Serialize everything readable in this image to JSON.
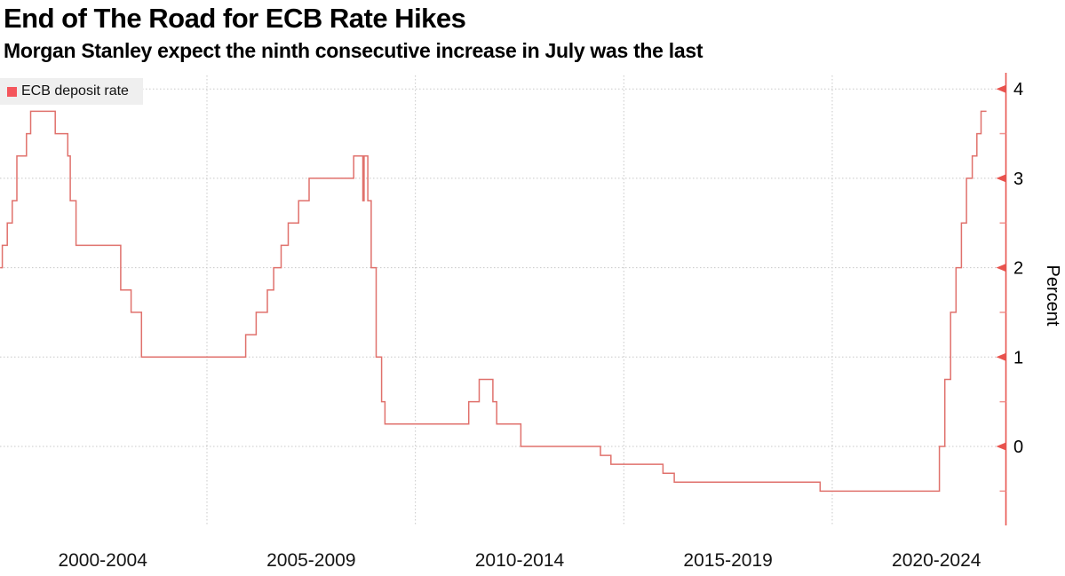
{
  "header": {
    "title": "End of The Road for ECB Rate Hikes",
    "subtitle": "Morgan Stanley expect the ninth consecutive increase in July was the last"
  },
  "legend": {
    "label": "ECB deposit rate"
  },
  "colors": {
    "line": "#e0716c",
    "axis": "#e8534e",
    "minor_tick": "#f0938f",
    "grid": "#c8c8c8",
    "legend_bg": "#efefef",
    "legend_swatch": "#f4565c",
    "tick_text": "#000000",
    "xlabel_text": "#141414"
  },
  "y_axis": {
    "title": "Percent",
    "major_ticks": [
      4,
      3,
      2,
      1,
      0
    ],
    "minor_ticks": [
      3.5,
      2.5,
      1.5,
      0.5,
      -0.5
    ]
  },
  "x_axis": {
    "labels": [
      "2000-2004",
      "2005-2009",
      "2010-2014",
      "2015-2019",
      "2020-2024"
    ],
    "gridline_years": [
      2005,
      2010,
      2015,
      2020
    ]
  },
  "chart_data": {
    "type": "line",
    "style": "step-after",
    "title": "End of The Road for ECB Rate Hikes",
    "subtitle": "Morgan Stanley expect the ninth consecutive increase in July was the last",
    "xlabel": "",
    "ylabel": "Percent",
    "xlim": [
      2000,
      2024.1
    ],
    "ylim": [
      -1,
      4.2
    ],
    "grid": "dotted",
    "legend_position": "top-left",
    "x_end": 2023.7,
    "series": [
      {
        "name": "ECB deposit rate",
        "unit": "percent",
        "points": [
          [
            2000.04,
            2.0
          ],
          [
            2000.09,
            2.25
          ],
          [
            2000.21,
            2.5
          ],
          [
            2000.33,
            2.75
          ],
          [
            2000.44,
            3.25
          ],
          [
            2000.67,
            3.5
          ],
          [
            2000.77,
            3.75
          ],
          [
            2001.36,
            3.5
          ],
          [
            2001.66,
            3.25
          ],
          [
            2001.72,
            2.75
          ],
          [
            2001.86,
            2.25
          ],
          [
            2002.93,
            1.75
          ],
          [
            2003.18,
            1.5
          ],
          [
            2003.43,
            1.0
          ],
          [
            2005.93,
            1.25
          ],
          [
            2006.18,
            1.5
          ],
          [
            2006.45,
            1.75
          ],
          [
            2006.6,
            2.0
          ],
          [
            2006.78,
            2.25
          ],
          [
            2006.95,
            2.5
          ],
          [
            2007.2,
            2.75
          ],
          [
            2007.45,
            3.0
          ],
          [
            2008.52,
            3.25
          ],
          [
            2008.74,
            2.75
          ],
          [
            2008.77,
            3.25
          ],
          [
            2008.86,
            2.75
          ],
          [
            2008.94,
            2.0
          ],
          [
            2009.06,
            1.0
          ],
          [
            2009.19,
            0.5
          ],
          [
            2009.27,
            0.25
          ],
          [
            2011.28,
            0.5
          ],
          [
            2011.53,
            0.75
          ],
          [
            2011.86,
            0.5
          ],
          [
            2011.95,
            0.25
          ],
          [
            2012.53,
            0.0
          ],
          [
            2014.44,
            -0.1
          ],
          [
            2014.69,
            -0.2
          ],
          [
            2015.94,
            -0.3
          ],
          [
            2016.21,
            -0.4
          ],
          [
            2019.71,
            -0.5
          ],
          [
            2022.57,
            0.0
          ],
          [
            2022.7,
            0.75
          ],
          [
            2022.84,
            1.5
          ],
          [
            2022.97,
            2.0
          ],
          [
            2023.1,
            2.5
          ],
          [
            2023.22,
            3.0
          ],
          [
            2023.36,
            3.25
          ],
          [
            2023.47,
            3.5
          ],
          [
            2023.57,
            3.75
          ]
        ]
      }
    ]
  }
}
